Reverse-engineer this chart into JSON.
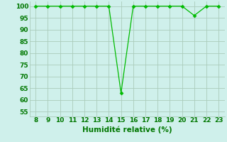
{
  "x": [
    8,
    9,
    10,
    11,
    12,
    13,
    14,
    15,
    16,
    17,
    18,
    19,
    20,
    21,
    22,
    23
  ],
  "y": [
    100,
    100,
    100,
    100,
    100,
    100,
    100,
    63,
    100,
    100,
    100,
    100,
    100,
    96,
    100,
    100
  ],
  "line_color": "#00bb00",
  "marker": "D",
  "marker_size": 2.5,
  "bg_color": "#cff0eb",
  "grid_color": "#aaccbb",
  "xlabel": "Humidité relative (%)",
  "xlabel_color": "#007700",
  "xlabel_fontsize": 7.5,
  "tick_color": "#007700",
  "tick_fontsize": 6.5,
  "xlim": [
    7.5,
    23.5
  ],
  "ylim": [
    53,
    102
  ],
  "yticks": [
    55,
    60,
    65,
    70,
    75,
    80,
    85,
    90,
    95,
    100
  ],
  "xticks": [
    8,
    9,
    10,
    11,
    12,
    13,
    14,
    15,
    16,
    17,
    18,
    19,
    20,
    21,
    22,
    23
  ]
}
